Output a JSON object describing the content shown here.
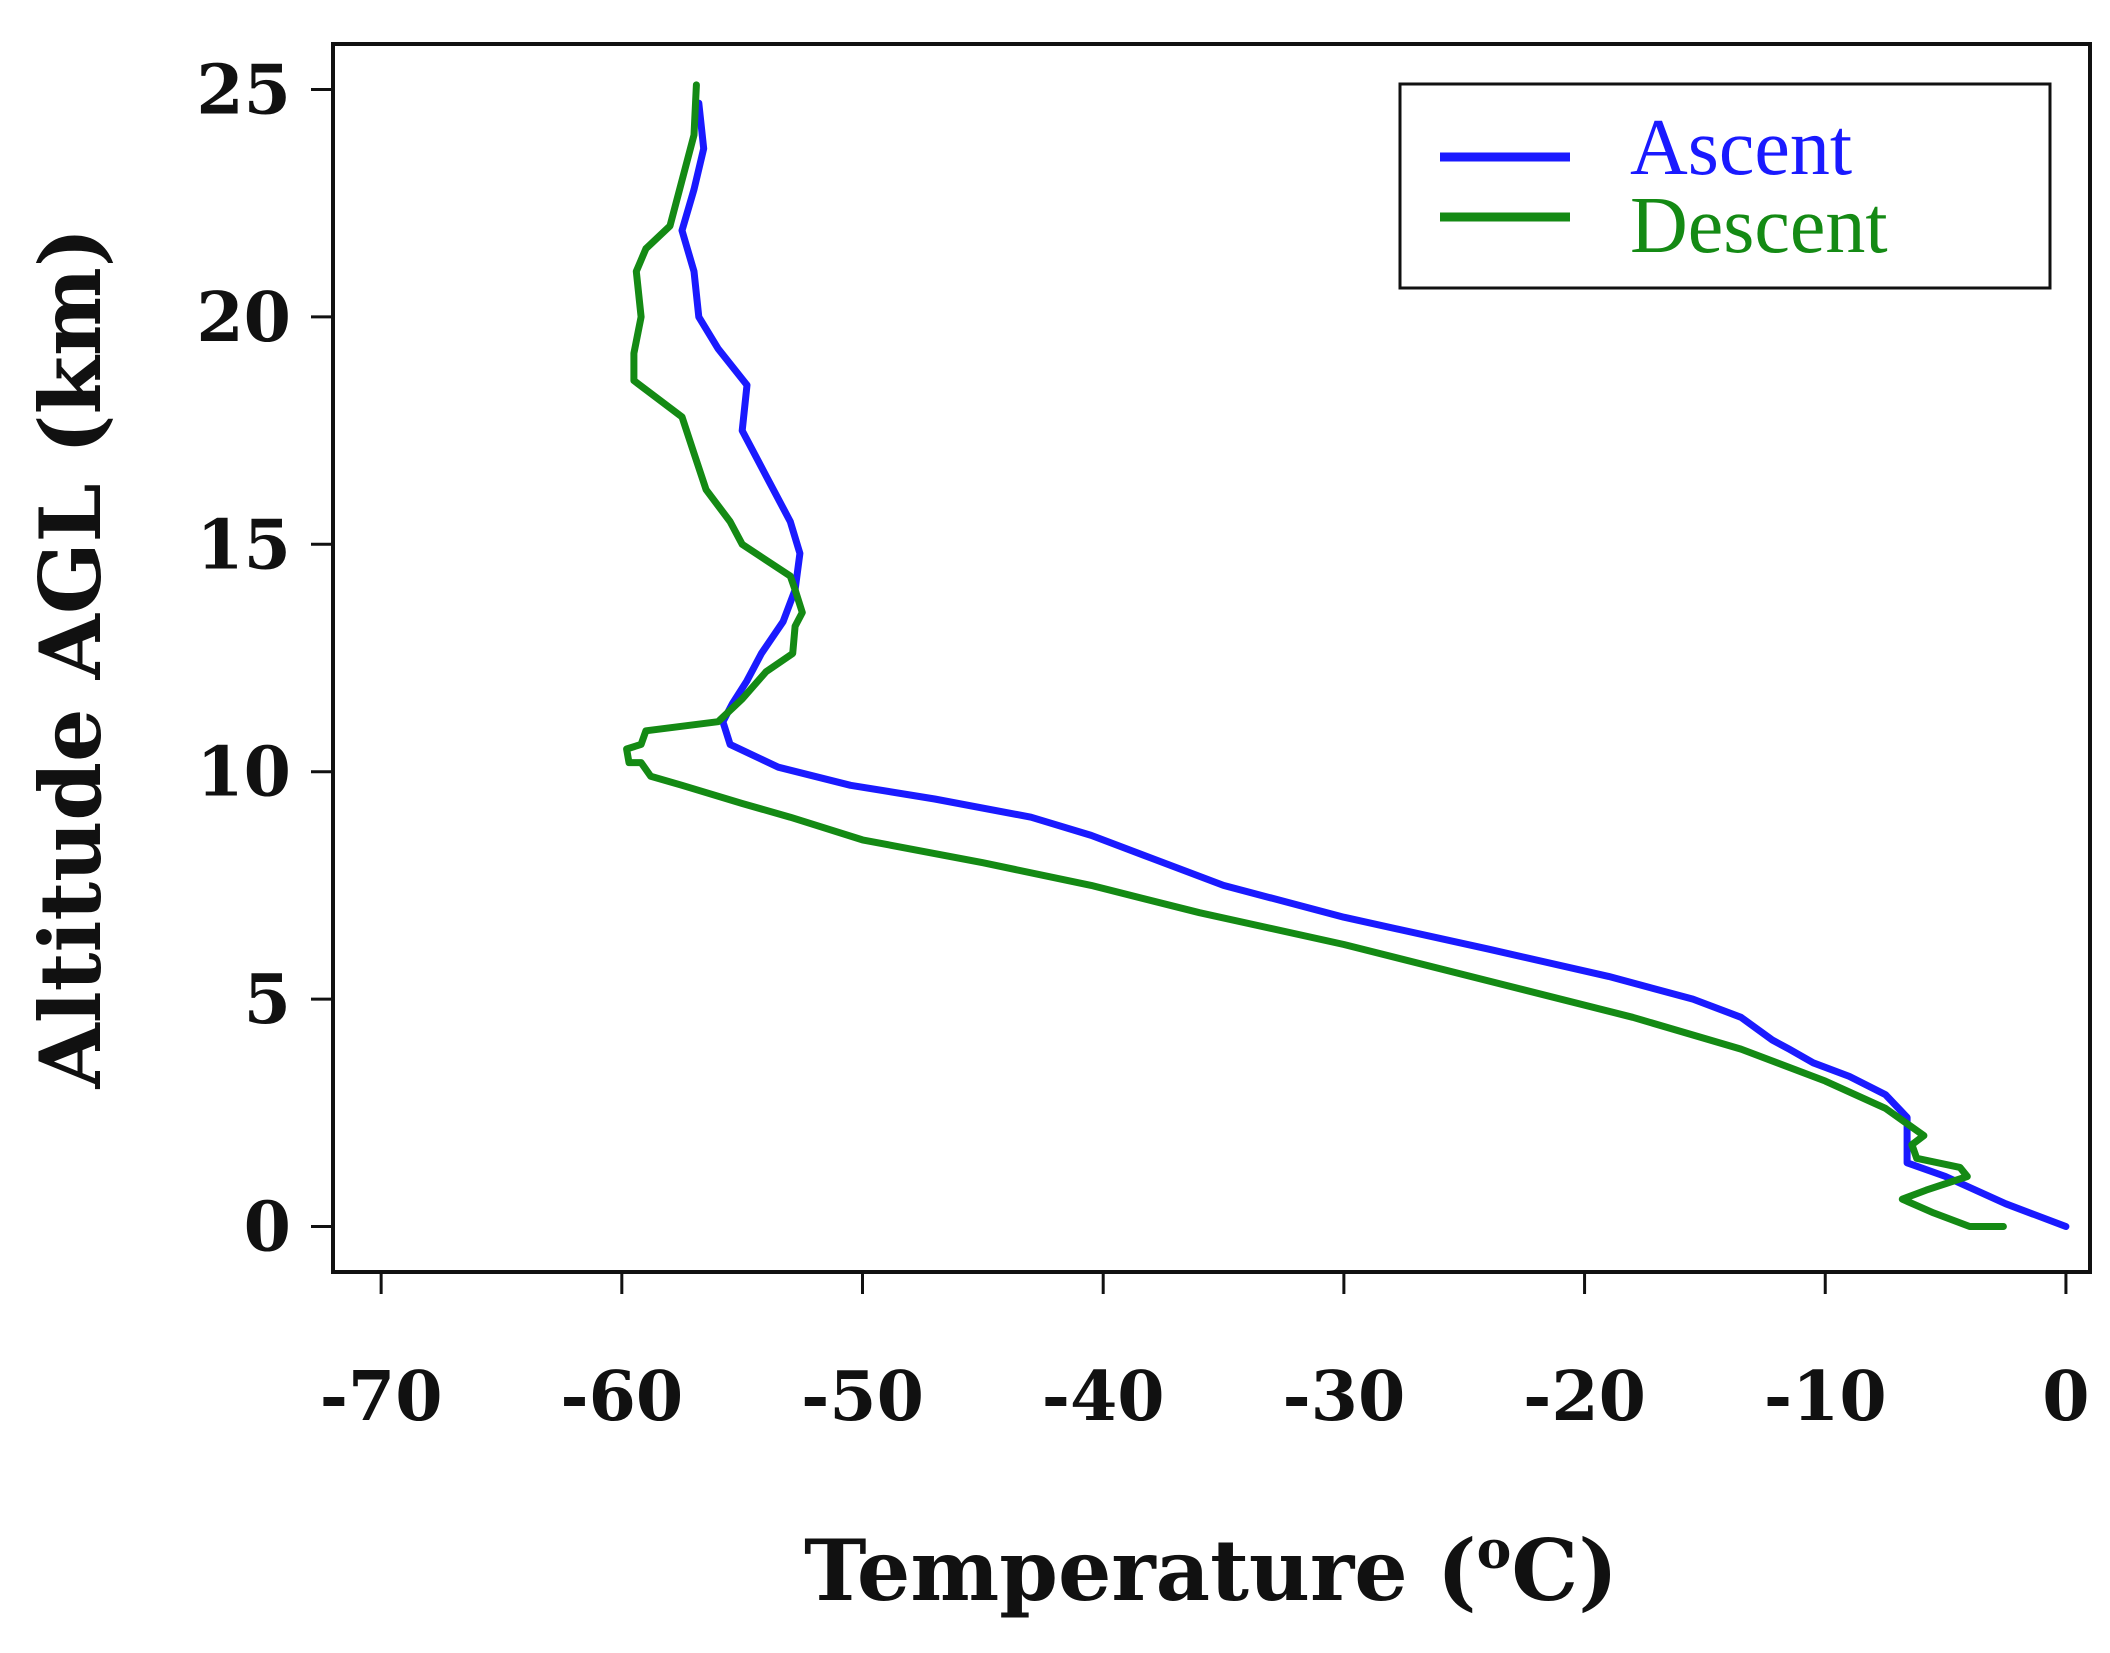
{
  "chart_data": {
    "type": "line",
    "title": "",
    "xlabel": "Temperature (",
    "xlabel_sup": "o",
    "xlabel_unit": "C)",
    "ylabel": "Altitude AGL (km)",
    "xlim": [
      -72,
      1
    ],
    "ylim": [
      -1,
      26
    ],
    "xticks": [
      -70,
      -60,
      -50,
      -40,
      -30,
      -20,
      -10,
      0
    ],
    "xtick_labels": [
      "-70",
      "-60",
      "-50",
      "-40",
      "-30",
      "-20",
      "-10",
      "0"
    ],
    "yticks": [
      0,
      5,
      10,
      15,
      20,
      25
    ],
    "ytick_labels": [
      "0",
      "5",
      "10",
      "15",
      "20",
      "25"
    ],
    "grid": false,
    "legend_position": "top-right",
    "series": [
      {
        "name": "Ascent",
        "color": "#1a1aff",
        "points": [
          [
            0.0,
            0.0
          ],
          [
            -2.5,
            0.5
          ],
          [
            -5.0,
            1.1
          ],
          [
            -6.6,
            1.4
          ],
          [
            -6.6,
            2.0
          ],
          [
            -6.6,
            2.4
          ],
          [
            -7.5,
            2.9
          ],
          [
            -9.0,
            3.3
          ],
          [
            -10.5,
            3.6
          ],
          [
            -11.5,
            3.9
          ],
          [
            -12.2,
            4.1
          ],
          [
            -13.5,
            4.6
          ],
          [
            -15.5,
            5.0
          ],
          [
            -19.0,
            5.5
          ],
          [
            -24.0,
            6.1
          ],
          [
            -30.0,
            6.8
          ],
          [
            -35.0,
            7.5
          ],
          [
            -38.0,
            8.1
          ],
          [
            -40.5,
            8.6
          ],
          [
            -43.0,
            9.0
          ],
          [
            -47.0,
            9.4
          ],
          [
            -50.5,
            9.7
          ],
          [
            -53.5,
            10.1
          ],
          [
            -55.5,
            10.6
          ],
          [
            -55.8,
            11.1
          ],
          [
            -55.4,
            11.5
          ],
          [
            -54.8,
            12.0
          ],
          [
            -54.2,
            12.6
          ],
          [
            -53.3,
            13.3
          ],
          [
            -52.8,
            14.0
          ],
          [
            -52.6,
            14.8
          ],
          [
            -53.0,
            15.5
          ],
          [
            -54.0,
            16.5
          ],
          [
            -55.0,
            17.5
          ],
          [
            -54.8,
            18.5
          ],
          [
            -56.0,
            19.3
          ],
          [
            -56.8,
            20.0
          ],
          [
            -57.0,
            21.0
          ],
          [
            -57.5,
            21.9
          ],
          [
            -57.0,
            22.8
          ],
          [
            -56.6,
            23.7
          ],
          [
            -56.8,
            24.7
          ]
        ]
      },
      {
        "name": "Descent",
        "color": "#148a14",
        "points": [
          [
            -2.6,
            0.0
          ],
          [
            -4.0,
            0.0
          ],
          [
            -5.5,
            0.3
          ],
          [
            -6.8,
            0.6
          ],
          [
            -5.8,
            0.8
          ],
          [
            -4.1,
            1.1
          ],
          [
            -4.4,
            1.3
          ],
          [
            -6.2,
            1.5
          ],
          [
            -6.4,
            1.8
          ],
          [
            -5.9,
            2.0
          ],
          [
            -7.5,
            2.6
          ],
          [
            -10.0,
            3.2
          ],
          [
            -13.5,
            3.9
          ],
          [
            -18.0,
            4.6
          ],
          [
            -24.0,
            5.4
          ],
          [
            -30.0,
            6.2
          ],
          [
            -36.0,
            6.9
          ],
          [
            -40.5,
            7.5
          ],
          [
            -45.0,
            8.0
          ],
          [
            -50.0,
            8.5
          ],
          [
            -53.0,
            9.0
          ],
          [
            -55.0,
            9.3
          ],
          [
            -57.5,
            9.7
          ],
          [
            -58.8,
            9.9
          ],
          [
            -59.2,
            10.2
          ],
          [
            -59.7,
            10.2
          ],
          [
            -59.8,
            10.5
          ],
          [
            -59.2,
            10.6
          ],
          [
            -59.0,
            10.9
          ],
          [
            -56.0,
            11.1
          ],
          [
            -55.0,
            11.6
          ],
          [
            -54.0,
            12.2
          ],
          [
            -52.9,
            12.6
          ],
          [
            -52.8,
            13.2
          ],
          [
            -52.5,
            13.5
          ],
          [
            -52.8,
            14.0
          ],
          [
            -53.0,
            14.3
          ],
          [
            -55.0,
            15.0
          ],
          [
            -55.5,
            15.5
          ],
          [
            -56.5,
            16.2
          ],
          [
            -57.0,
            17.0
          ],
          [
            -57.5,
            17.8
          ],
          [
            -59.5,
            18.6
          ],
          [
            -59.5,
            19.2
          ],
          [
            -59.2,
            20.0
          ],
          [
            -59.4,
            21.0
          ],
          [
            -59.0,
            21.5
          ],
          [
            -58.0,
            22.0
          ],
          [
            -57.5,
            23.0
          ],
          [
            -57.0,
            24.0
          ],
          [
            -56.9,
            25.1
          ]
        ]
      }
    ]
  }
}
